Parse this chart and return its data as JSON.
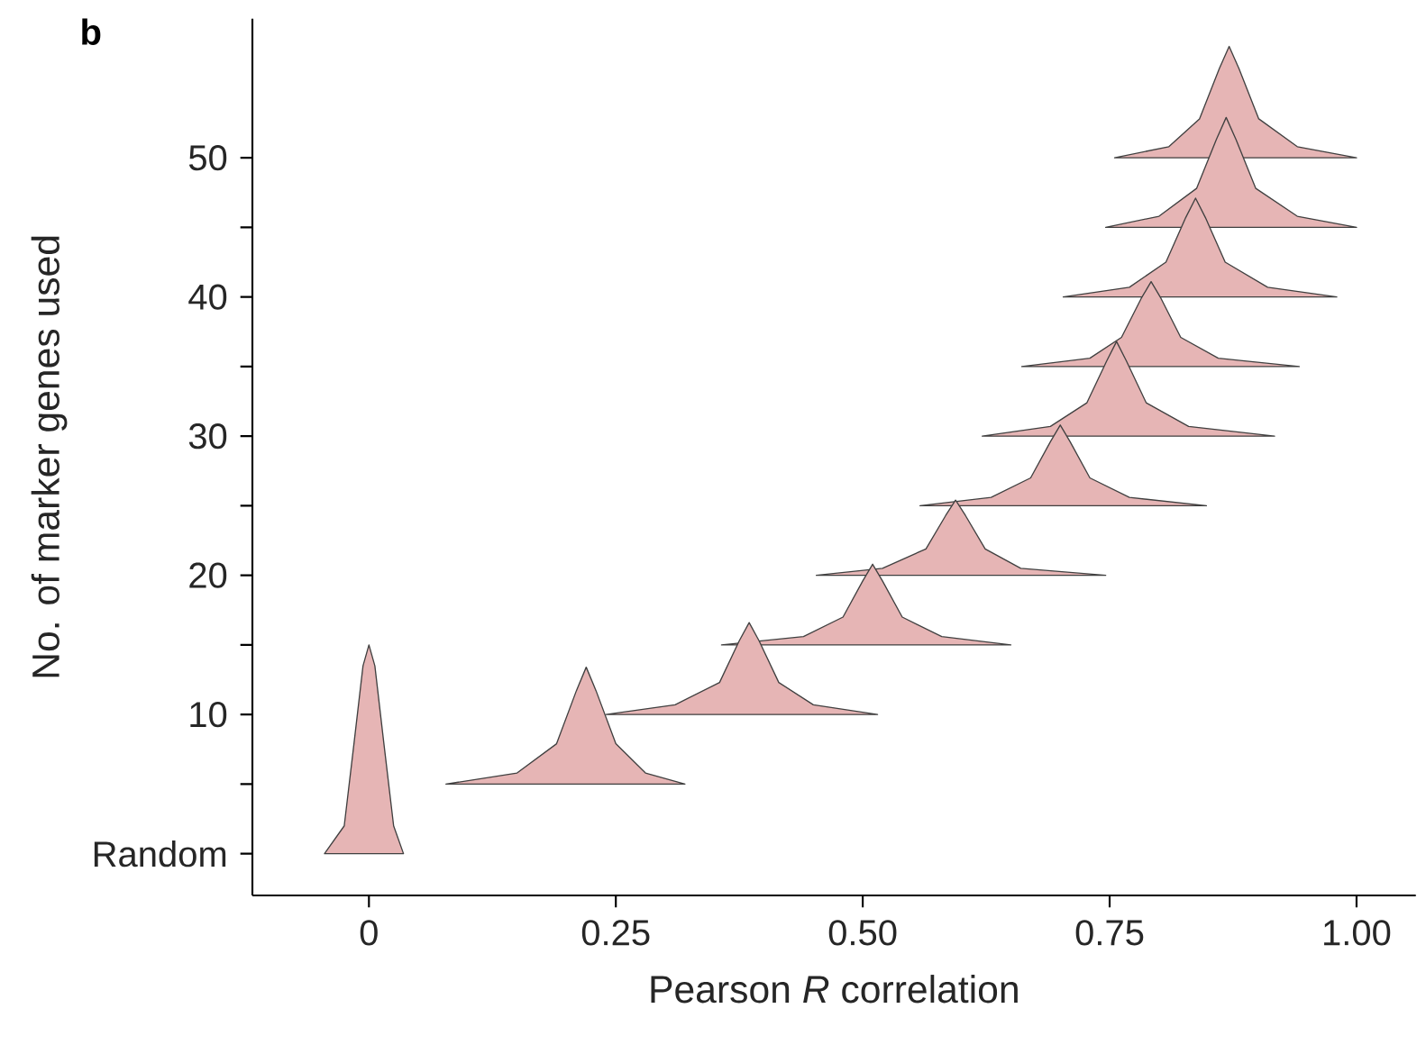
{
  "chart_data": {
    "type": "area",
    "xlabel": "Pearson *R* correlation",
    "ylabel": "No. of marker genes used",
    "annotations": [
      "b"
    ],
    "xlim": [
      -0.118,
      1.06
    ],
    "ylim": [
      -3,
      60
    ],
    "xticks": [
      0,
      0.25,
      {
        "value": 0.5,
        "label": "0.50"
      },
      0.75,
      {
        "value": 1,
        "label": "1.00"
      }
    ],
    "yticks": [
      {
        "value": 0,
        "label": "Random"
      },
      {
        "value": 5,
        "label": null
      },
      10,
      {
        "value": 15,
        "label": null
      },
      20,
      {
        "value": 25,
        "label": null
      },
      30,
      {
        "value": 35,
        "label": null
      },
      40,
      {
        "value": 45,
        "label": null
      },
      50
    ],
    "series": [
      {
        "color": "#e6b5b5",
        "x": [
          -0.045,
          -0.025,
          -0.015,
          -0.006,
          0,
          0.006,
          0.015,
          0.025,
          0.035
        ],
        "values": [
          0,
          2,
          8,
          13.5,
          15,
          13.5,
          8,
          2,
          0
        ]
      },
      {
        "color": "#e6b5b5",
        "x": [
          0.078,
          0.15,
          0.19,
          0.21,
          0.22,
          0.23,
          0.25,
          0.28,
          0.32
        ],
        "values": [
          5,
          5.8,
          7.9,
          11.7,
          13.4,
          11.7,
          7.9,
          5.8,
          5
        ]
      },
      {
        "color": "#e6b5b5",
        "x": [
          0.24,
          0.31,
          0.355,
          0.375,
          0.385,
          0.395,
          0.415,
          0.45,
          0.515
        ],
        "values": [
          10,
          10.7,
          12.3,
          15.3,
          16.6,
          15.3,
          12.3,
          10.7,
          10
        ]
      },
      {
        "color": "#e6b5b5",
        "x": [
          0.357,
          0.44,
          0.48,
          0.5,
          0.51,
          0.52,
          0.54,
          0.58,
          0.65
        ],
        "values": [
          15,
          15.6,
          17,
          19.6,
          20.8,
          19.6,
          17,
          15.6,
          15
        ]
      },
      {
        "color": "#e6b5b5",
        "x": [
          0.453,
          0.52,
          0.564,
          0.584,
          0.594,
          0.604,
          0.624,
          0.66,
          0.746
        ],
        "values": [
          20,
          20.5,
          21.9,
          24.3,
          25.4,
          24.3,
          21.9,
          20.5,
          20
        ]
      },
      {
        "color": "#e6b5b5",
        "x": [
          0.558,
          0.63,
          0.67,
          0.69,
          0.7,
          0.71,
          0.73,
          0.77,
          0.848
        ],
        "values": [
          25,
          25.6,
          27,
          29.6,
          30.8,
          29.6,
          27,
          25.6,
          25
        ]
      },
      {
        "color": "#e6b5b5",
        "x": [
          0.621,
          0.69,
          0.727,
          0.747,
          0.757,
          0.767,
          0.787,
          0.83,
          0.917
        ],
        "values": [
          30,
          30.7,
          32.4,
          35.4,
          36.8,
          35.4,
          32.4,
          30.7,
          30
        ]
      },
      {
        "color": "#e6b5b5",
        "x": [
          0.661,
          0.73,
          0.762,
          0.782,
          0.792,
          0.802,
          0.822,
          0.86,
          0.942
        ],
        "values": [
          35,
          35.6,
          37.1,
          39.9,
          41.1,
          39.9,
          37.1,
          35.6,
          35
        ]
      },
      {
        "color": "#e6b5b5",
        "x": [
          0.703,
          0.77,
          0.807,
          0.827,
          0.837,
          0.847,
          0.867,
          0.91,
          0.98
        ],
        "values": [
          40,
          40.7,
          42.5,
          45.7,
          47.1,
          45.7,
          42.5,
          40.7,
          40
        ]
      },
      {
        "color": "#e6b5b5",
        "x": [
          0.746,
          0.8,
          0.838,
          0.858,
          0.868,
          0.878,
          0.898,
          0.94,
          1.0
        ],
        "values": [
          45,
          45.8,
          47.8,
          51.3,
          52.9,
          51.3,
          47.8,
          45.8,
          45
        ]
      },
      {
        "color": "#e6b5b5",
        "x": [
          0.755,
          0.81,
          0.841,
          0.861,
          0.871,
          0.881,
          0.901,
          0.94,
          1.0
        ],
        "values": [
          50,
          50.8,
          52.8,
          56.4,
          58,
          56.4,
          52.8,
          50.8,
          50
        ]
      }
    ]
  }
}
